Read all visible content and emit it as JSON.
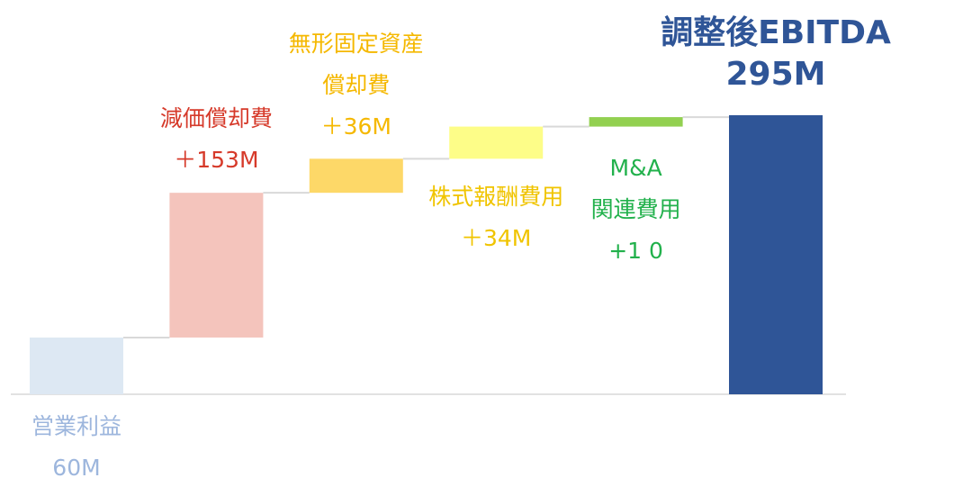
{
  "chart_data": {
    "type": "waterfall",
    "categories": [
      [
        "営業利益"
      ],
      [
        "減価償却費"
      ],
      [
        "無形固定資産",
        "償却費"
      ],
      [
        "株式報酬費用"
      ],
      [
        "M&A",
        "関連費用"
      ],
      [
        "調整後EBITDA"
      ]
    ],
    "values": [
      60,
      153,
      36,
      34,
      10,
      295
    ],
    "value_labels": [
      "60M",
      "＋153M",
      "＋36M",
      "＋34M",
      "+1 0",
      "295M"
    ],
    "kinds": [
      "total",
      "increase",
      "increase",
      "increase",
      "increase",
      "total"
    ],
    "colors": [
      "#dde8f3",
      "#f4c4bc",
      "#fdd868",
      "#fdfd88",
      "#92d050",
      "#2f5597"
    ],
    "label_colors": [
      "#9db6dd",
      "#d63a2a",
      "#f5b800",
      "#f0c400",
      "#22b14c",
      "#2f5597"
    ]
  }
}
